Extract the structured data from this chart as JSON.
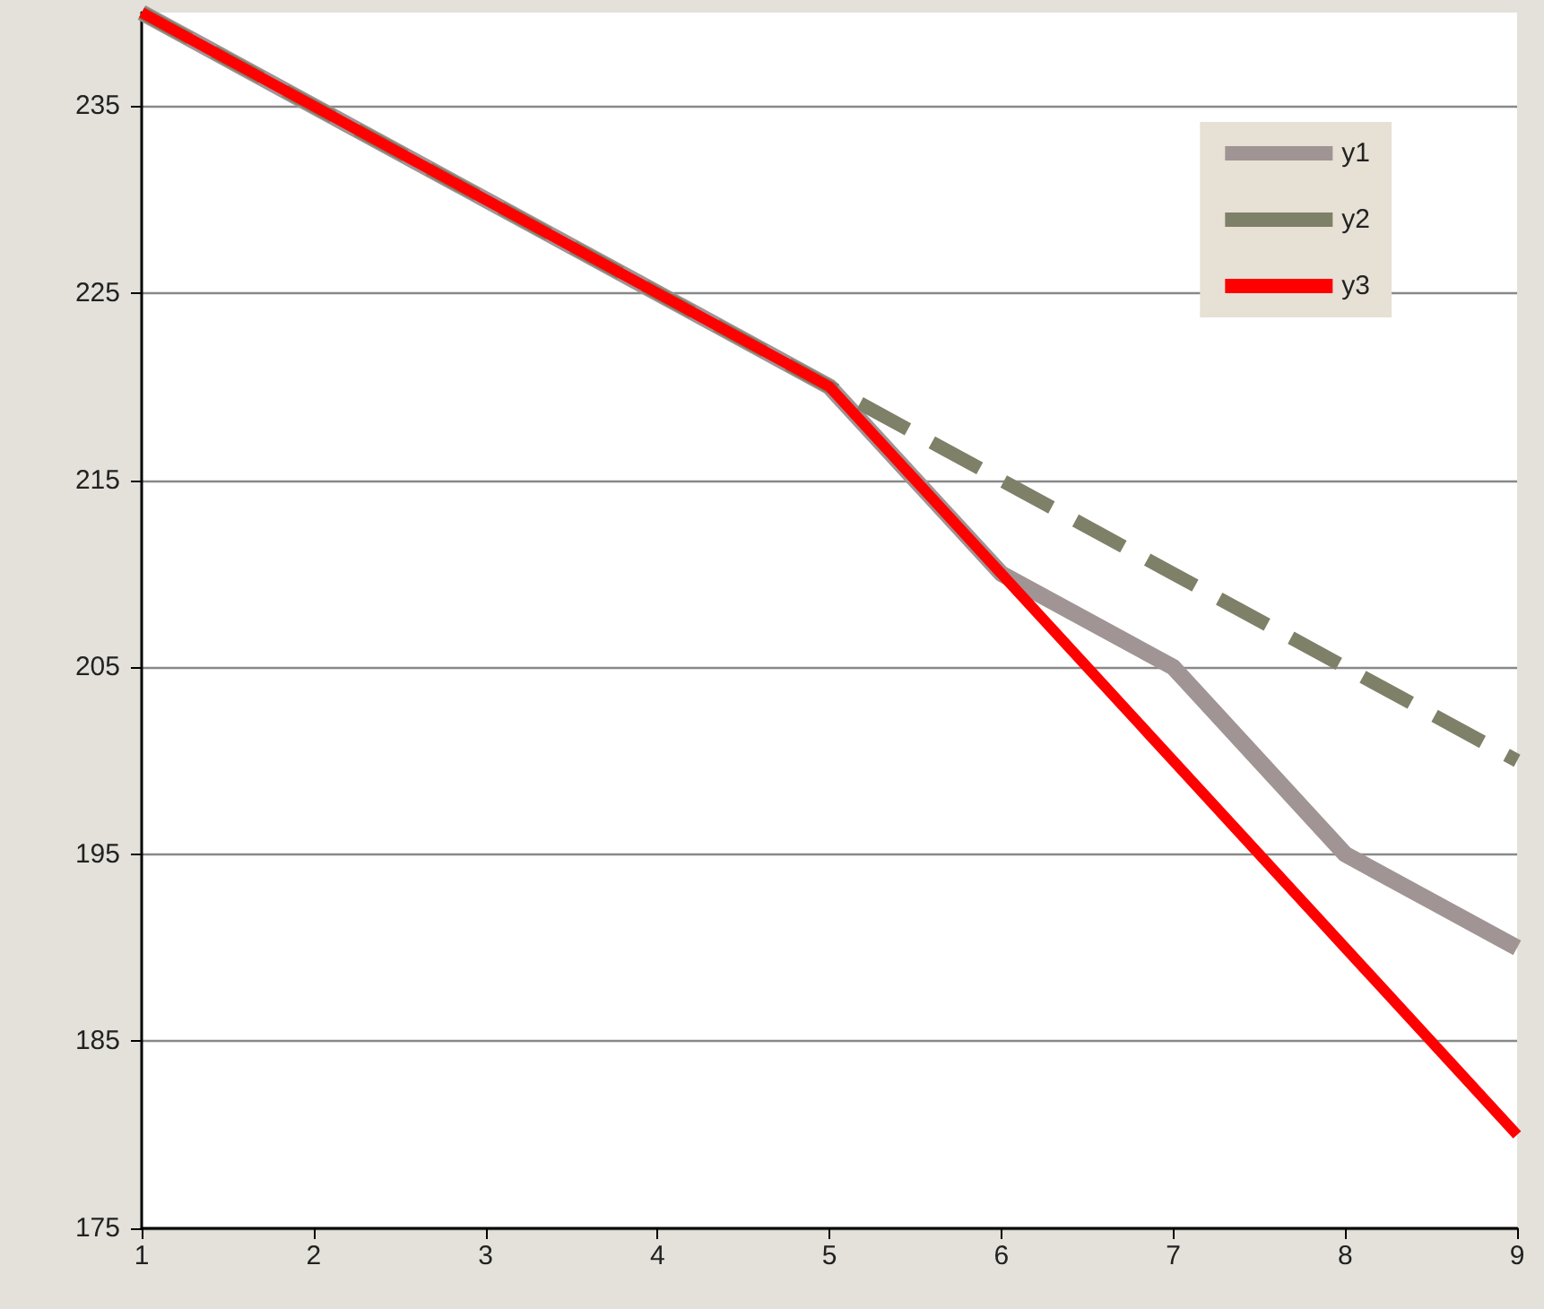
{
  "chart_data": {
    "type": "line",
    "x": [
      1,
      2,
      3,
      4,
      5,
      6,
      7,
      8,
      9
    ],
    "series": [
      {
        "name": "y1",
        "color": "#a09494",
        "values": [
          240,
          235,
          230,
          225,
          220,
          210,
          205,
          195,
          190
        ]
      },
      {
        "name": "y2",
        "color": "#7f8068",
        "line_style": "dashed",
        "values": [
          240,
          235,
          230,
          225,
          220,
          215,
          210,
          205,
          200
        ]
      },
      {
        "name": "y3",
        "color": "#ff0000",
        "values": [
          240,
          235,
          230,
          225,
          220,
          210,
          200,
          190,
          180
        ]
      }
    ],
    "xlim": [
      1,
      9
    ],
    "xticks": [
      1,
      2,
      3,
      4,
      5,
      6,
      7,
      8,
      9
    ],
    "ylim": [
      175,
      240
    ],
    "yticks": [
      175,
      185,
      195,
      205,
      215,
      225,
      235
    ],
    "grid": "y",
    "legend": "top right",
    "marker": "none",
    "line_style": "solid"
  }
}
